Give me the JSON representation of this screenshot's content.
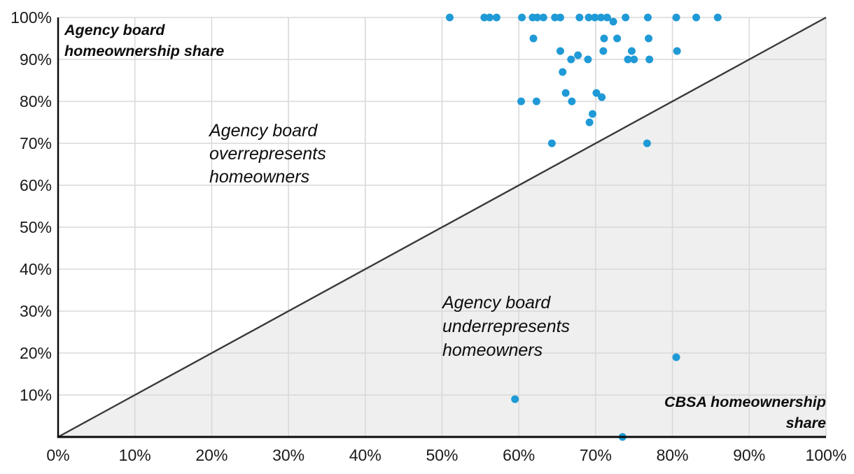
{
  "chart_data": {
    "type": "scatter",
    "title": "",
    "ylabel": "Agency board homeownership share",
    "xlabel": "CBSA homeownership share",
    "ylabel_annotation": "Agency board\nhomeownership share",
    "xlabel_annotation": "CBSA homeownership\nshare",
    "annotations": {
      "overrepresents": "Agency board\noverrepresents\nhomeowners",
      "underrepresents": "Agency board\nunderrepresents\nhomeowners"
    },
    "xlim": [
      0,
      100
    ],
    "ylim": [
      0,
      100
    ],
    "grid": true,
    "legend": "none",
    "diagonal_line": {
      "from": [
        0,
        0
      ],
      "to": [
        100,
        100
      ]
    },
    "shaded_region": "below-diagonal",
    "x_ticks": [
      {
        "v": 0,
        "label": "0%"
      },
      {
        "v": 10,
        "label": "10%"
      },
      {
        "v": 20,
        "label": "20%"
      },
      {
        "v": 30,
        "label": "30%"
      },
      {
        "v": 40,
        "label": "40%"
      },
      {
        "v": 50,
        "label": "50%"
      },
      {
        "v": 60,
        "label": "60%"
      },
      {
        "v": 70,
        "label": "70%"
      },
      {
        "v": 80,
        "label": "80%"
      },
      {
        "v": 90,
        "label": "90%"
      },
      {
        "v": 100,
        "label": "100%"
      }
    ],
    "y_ticks": [
      {
        "v": 10,
        "label": "10%"
      },
      {
        "v": 20,
        "label": "20%"
      },
      {
        "v": 30,
        "label": "30%"
      },
      {
        "v": 40,
        "label": "40%"
      },
      {
        "v": 50,
        "label": "50%"
      },
      {
        "v": 60,
        "label": "60%"
      },
      {
        "v": 70,
        "label": "70%"
      },
      {
        "v": 80,
        "label": "80%"
      },
      {
        "v": 90,
        "label": "90%"
      },
      {
        "v": 100,
        "label": "100%"
      }
    ],
    "colors": {
      "point": "#1f9ad6",
      "shade": "#efefef",
      "grid": "#d9d9d9",
      "diagonal": "#3a3a3a",
      "axis": "#0a0a0a",
      "text": "#0d0d0d"
    },
    "points": [
      [
        51,
        100
      ],
      [
        55.5,
        100
      ],
      [
        56.2,
        100
      ],
      [
        57.1,
        100
      ],
      [
        60.4,
        100
      ],
      [
        61.8,
        100
      ],
      [
        62.4,
        100
      ],
      [
        63.2,
        100
      ],
      [
        64.7,
        100
      ],
      [
        65.4,
        100
      ],
      [
        67.9,
        100
      ],
      [
        69.1,
        100
      ],
      [
        69.9,
        100
      ],
      [
        70.7,
        100
      ],
      [
        71.5,
        100
      ],
      [
        73.9,
        100
      ],
      [
        76.8,
        100
      ],
      [
        80.5,
        100
      ],
      [
        83.1,
        100
      ],
      [
        85.9,
        100
      ],
      [
        72.3,
        99
      ],
      [
        61.9,
        95
      ],
      [
        71.1,
        95
      ],
      [
        72.8,
        95
      ],
      [
        76.9,
        95
      ],
      [
        65.4,
        92
      ],
      [
        71.0,
        92
      ],
      [
        74.7,
        92
      ],
      [
        80.6,
        92
      ],
      [
        66.8,
        90
      ],
      [
        67.7,
        91
      ],
      [
        69.0,
        90
      ],
      [
        74.2,
        90
      ],
      [
        75.0,
        90
      ],
      [
        77.0,
        90
      ],
      [
        65.7,
        87
      ],
      [
        66.1,
        82
      ],
      [
        70.1,
        82
      ],
      [
        70.8,
        81
      ],
      [
        60.3,
        80
      ],
      [
        62.3,
        80
      ],
      [
        66.9,
        80
      ],
      [
        69.6,
        77
      ],
      [
        69.2,
        75
      ],
      [
        64.3,
        70
      ],
      [
        76.7,
        70
      ],
      [
        80.5,
        19
      ],
      [
        59.5,
        9
      ],
      [
        73.5,
        0
      ]
    ]
  }
}
